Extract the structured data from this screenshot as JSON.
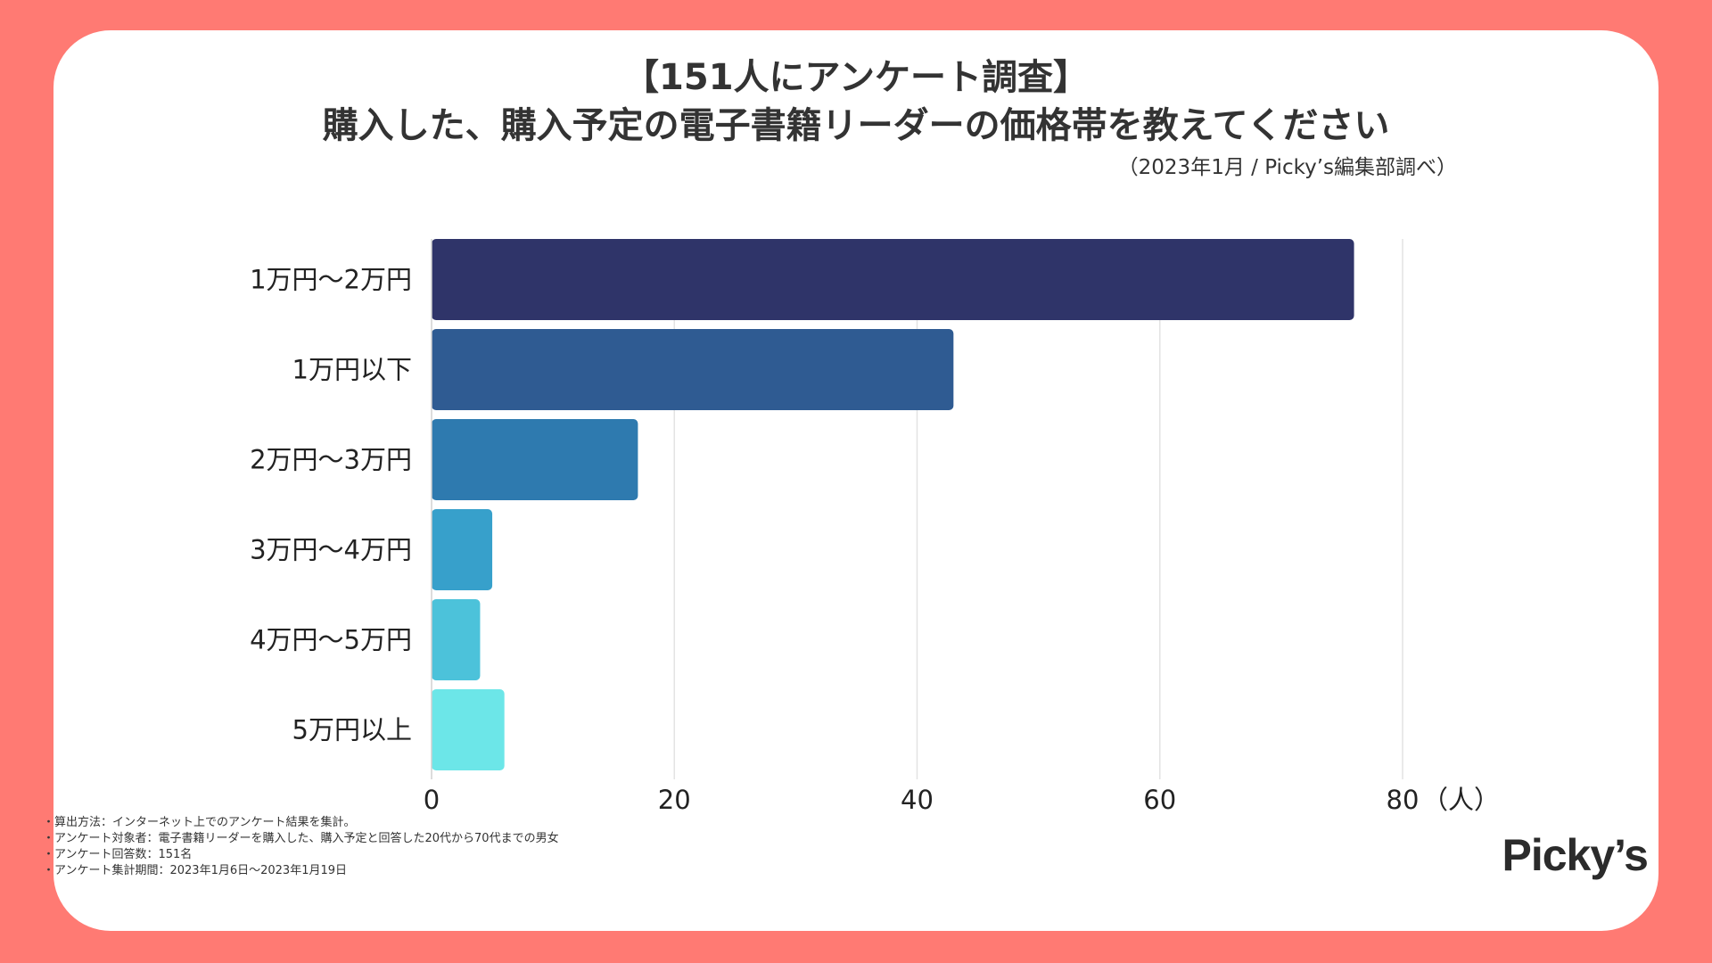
{
  "header": {
    "title_line1": "【151人にアンケート調査】",
    "title_line2": "購入した、購入予定の電子書籍リーダーの価格帯を教えてください",
    "source": "（2023年1月 / Picky’s編集部調べ）"
  },
  "chart_data": {
    "type": "bar",
    "orientation": "horizontal",
    "categories": [
      "1万円〜2万円",
      "1万円以下",
      "2万円〜3万円",
      "3万円〜4万円",
      "4万円〜5万円",
      "5万円以上"
    ],
    "values": [
      76,
      43,
      17,
      5,
      4,
      6
    ],
    "colors": [
      "#2f3469",
      "#2f5b92",
      "#2e7aaf",
      "#37a0cb",
      "#4cc2da",
      "#6ce6e8"
    ],
    "xlim": [
      0,
      80
    ],
    "xticks": [
      0,
      20,
      40,
      60,
      80
    ],
    "xunit": "（人）",
    "grid": true
  },
  "footnotes": [
    "・算出方法：インターネット上でのアンケート結果を集計。",
    "・アンケート対象者：電子書籍リーダーを購入した、購入予定と回答した20代から70代までの男女",
    "・アンケート回答数：151名",
    "・アンケート集計期間：2023年1月6日〜2023年1月19日"
  ],
  "logo": "Picky’s"
}
